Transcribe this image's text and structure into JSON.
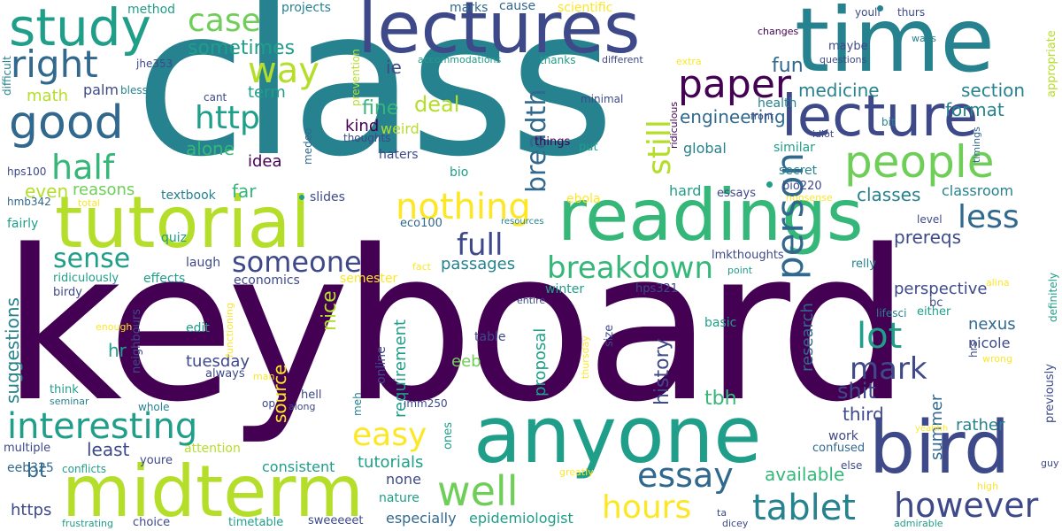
{
  "colors": {
    "dark_purple": "#440154",
    "indigo": "#3e4989",
    "blue": "#31688e",
    "teal": "#26828e",
    "green_teal": "#1f9e89",
    "green": "#35b779",
    "light_green": "#6ece58",
    "lime": "#b5de2b",
    "yellow": "#fde725"
  },
  "words": [
    {
      "text": "keyboard",
      "color": "dark_purple"
    },
    {
      "text": "class",
      "color": "teal"
    },
    {
      "text": "time",
      "color": "teal"
    },
    {
      "text": "lectures",
      "color": "indigo"
    },
    {
      "text": "lecture",
      "color": "indigo"
    },
    {
      "text": "readings",
      "color": "green"
    },
    {
      "text": "tutorial",
      "color": "lime"
    },
    {
      "text": "anyone",
      "color": "green_teal"
    },
    {
      "text": "midterm",
      "color": "lime"
    },
    {
      "text": "bird",
      "color": "indigo"
    },
    {
      "text": "study",
      "color": "green_teal"
    },
    {
      "text": "good",
      "color": "blue"
    },
    {
      "text": "people",
      "color": "light_green"
    },
    {
      "text": "paper",
      "color": "dark_purple"
    },
    {
      "text": "right",
      "color": "blue"
    },
    {
      "text": "case",
      "color": "light_green"
    },
    {
      "text": "way",
      "color": "lime"
    },
    {
      "text": "half",
      "color": "green"
    },
    {
      "text": "http",
      "color": "green_teal"
    },
    {
      "text": "sometimes",
      "color": "green_teal"
    },
    {
      "text": "nothing",
      "color": "yellow"
    },
    {
      "text": "breadth",
      "color": "blue"
    },
    {
      "text": "still",
      "color": "lime"
    },
    {
      "text": "less",
      "color": "blue"
    },
    {
      "text": "full",
      "color": "indigo"
    },
    {
      "text": "sense",
      "color": "green_teal"
    },
    {
      "text": "someone",
      "color": "indigo"
    },
    {
      "text": "breakdown",
      "color": "green"
    },
    {
      "text": "person",
      "color": "blue"
    },
    {
      "text": "lot",
      "color": "green_teal"
    },
    {
      "text": "mark",
      "color": "indigo"
    },
    {
      "text": "interesting",
      "color": "green_teal"
    },
    {
      "text": "easy",
      "color": "yellow"
    },
    {
      "text": "well",
      "color": "light_green"
    },
    {
      "text": "essay",
      "color": "blue"
    },
    {
      "text": "tablet",
      "color": "teal"
    },
    {
      "text": "however",
      "color": "indigo"
    },
    {
      "text": "hours",
      "color": "yellow"
    },
    {
      "text": "engineering",
      "color": "blue"
    },
    {
      "text": "format",
      "color": "teal"
    },
    {
      "text": "fun",
      "color": "blue"
    },
    {
      "text": "medicine",
      "color": "teal"
    },
    {
      "text": "section",
      "color": "teal"
    },
    {
      "text": "deal",
      "color": "lime"
    },
    {
      "text": "fine",
      "color": "green"
    },
    {
      "text": "ie",
      "color": "indigo"
    },
    {
      "text": "alone",
      "color": "green"
    },
    {
      "text": "kind",
      "color": "dark_purple"
    },
    {
      "text": "weird",
      "color": "lime"
    },
    {
      "text": "idea",
      "color": "dark_purple"
    },
    {
      "text": "term",
      "color": "green_teal"
    },
    {
      "text": "math",
      "color": "lime"
    },
    {
      "text": "palm",
      "color": "indigo"
    },
    {
      "text": "even",
      "color": "lime"
    },
    {
      "text": "reasons",
      "color": "light_green"
    },
    {
      "text": "far",
      "color": "green"
    },
    {
      "text": "classes",
      "color": "teal"
    },
    {
      "text": "classroom",
      "color": "teal"
    },
    {
      "text": "prereqs",
      "color": "indigo"
    },
    {
      "text": "passages",
      "color": "teal"
    },
    {
      "text": "perspective",
      "color": "indigo"
    },
    {
      "text": "research",
      "color": "blue"
    },
    {
      "text": "shit",
      "color": "indigo"
    },
    {
      "text": "third",
      "color": "indigo"
    },
    {
      "text": "tbh",
      "color": "green"
    },
    {
      "text": "history",
      "color": "indigo"
    },
    {
      "text": "tuesday",
      "color": "indigo"
    },
    {
      "text": "nice",
      "color": "lime"
    },
    {
      "text": "source",
      "color": "yellow"
    },
    {
      "text": "suggestions",
      "color": "teal"
    },
    {
      "text": "least",
      "color": "indigo"
    },
    {
      "text": "hr",
      "color": "green_teal"
    },
    {
      "text": "bt",
      "color": "blue"
    },
    {
      "text": "eeb",
      "color": "light_green"
    },
    {
      "text": "requirement",
      "color": "green_teal"
    },
    {
      "text": "proposal",
      "color": "green_teal"
    },
    {
      "text": "rather",
      "color": "teal"
    },
    {
      "text": "summer",
      "color": "blue"
    },
    {
      "text": "nicole",
      "color": "indigo"
    },
    {
      "text": "nexus",
      "color": "blue"
    },
    {
      "text": "tutorials",
      "color": "green_teal"
    },
    {
      "text": "consistent",
      "color": "green_teal"
    },
    {
      "text": "none",
      "color": "indigo"
    },
    {
      "text": "available",
      "color": "green"
    },
    {
      "text": "https",
      "color": "indigo"
    },
    {
      "text": "especially",
      "color": "blue"
    },
    {
      "text": "epidemiologist",
      "color": "green_teal"
    },
    {
      "text": "projects",
      "color": "teal"
    },
    {
      "text": "marks",
      "color": "blue"
    },
    {
      "text": "cause",
      "color": "blue"
    },
    {
      "text": "scientific",
      "color": "yellow"
    },
    {
      "text": "method",
      "color": "green_teal"
    },
    {
      "text": "difficult",
      "color": "teal"
    },
    {
      "text": "jhe353",
      "color": "indigo"
    },
    {
      "text": "accommodations",
      "color": "green_teal"
    },
    {
      "text": "thanks",
      "color": "green_teal"
    },
    {
      "text": "different",
      "color": "indigo"
    },
    {
      "text": "extra",
      "color": "yellow"
    },
    {
      "text": "changes",
      "color": "dark_purple"
    },
    {
      "text": "youll",
      "color": "indigo"
    },
    {
      "text": "thurs",
      "color": "indigo"
    },
    {
      "text": "ways",
      "color": "teal"
    },
    {
      "text": "questions",
      "color": "indigo"
    },
    {
      "text": "maybe",
      "color": "indigo"
    },
    {
      "text": "appropriate",
      "color": "lime"
    },
    {
      "text": "bless",
      "color": "teal"
    },
    {
      "text": "cant",
      "color": "indigo"
    },
    {
      "text": "prevention",
      "color": "lime"
    },
    {
      "text": "minimal",
      "color": "indigo"
    },
    {
      "text": "ridiculous",
      "color": "dark_purple"
    },
    {
      "text": "health",
      "color": "teal"
    },
    {
      "text": "front",
      "color": "indigo"
    },
    {
      "text": "bit",
      "color": "teal"
    },
    {
      "text": "idiot",
      "color": "indigo"
    },
    {
      "text": "timings",
      "color": "blue"
    },
    {
      "text": "thoughts",
      "color": "indigo"
    },
    {
      "text": "things",
      "color": "dark_purple"
    },
    {
      "text": "put",
      "color": "green_teal"
    },
    {
      "text": "global",
      "color": "teal"
    },
    {
      "text": "similar",
      "color": "green_teal"
    },
    {
      "text": "secret",
      "color": "teal"
    },
    {
      "text": "medeo",
      "color": "blue"
    },
    {
      "text": "haters",
      "color": "indigo"
    },
    {
      "text": "bio",
      "color": "green_teal"
    },
    {
      "text": "hps100",
      "color": "indigo"
    },
    {
      "text": "textbook",
      "color": "teal"
    },
    {
      "text": "slides",
      "color": "indigo"
    },
    {
      "text": "ebola",
      "color": "yellow"
    },
    {
      "text": "hard",
      "color": "green_teal"
    },
    {
      "text": "essays",
      "color": "indigo"
    },
    {
      "text": "bio220",
      "color": "indigo"
    },
    {
      "text": "nonsense",
      "color": "yellow"
    },
    {
      "text": "hmb342",
      "color": "blue"
    },
    {
      "text": "total",
      "color": "yellow"
    },
    {
      "text": "eco100",
      "color": "blue"
    },
    {
      "text": "resources",
      "color": "teal"
    },
    {
      "text": "level",
      "color": "indigo"
    },
    {
      "text": "fairly",
      "color": "green_teal"
    },
    {
      "text": "quiz",
      "color": "green_teal"
    },
    {
      "text": "lmkthoughts",
      "color": "indigo"
    },
    {
      "text": "point",
      "color": "green_teal"
    },
    {
      "text": "relly",
      "color": "teal"
    },
    {
      "text": "laugh",
      "color": "indigo"
    },
    {
      "text": "fact",
      "color": "yellow"
    },
    {
      "text": "ridiculously",
      "color": "green_teal"
    },
    {
      "text": "effects",
      "color": "green_teal"
    },
    {
      "text": "economics",
      "color": "indigo"
    },
    {
      "text": "semester",
      "color": "yellow"
    },
    {
      "text": "either",
      "color": "green_teal"
    },
    {
      "text": "alina",
      "color": "yellow"
    },
    {
      "text": "birdy",
      "color": "indigo"
    },
    {
      "text": "winter",
      "color": "green_teal"
    },
    {
      "text": "hps321",
      "color": "indigo"
    },
    {
      "text": "definitely",
      "color": "green_teal"
    },
    {
      "text": "entire",
      "color": "indigo"
    },
    {
      "text": "bc",
      "color": "indigo"
    },
    {
      "text": "lifesci",
      "color": "teal"
    },
    {
      "text": "neighbours",
      "color": "indigo"
    },
    {
      "text": "enough",
      "color": "yellow"
    },
    {
      "text": "edit",
      "color": "green_teal"
    },
    {
      "text": "functioning",
      "color": "yellow"
    },
    {
      "text": "basic",
      "color": "green_teal"
    },
    {
      "text": "table",
      "color": "indigo"
    },
    {
      "text": "size",
      "color": "indigo"
    },
    {
      "text": "thursday",
      "color": "yellow"
    },
    {
      "text": "hrs",
      "color": "indigo"
    },
    {
      "text": "wrong",
      "color": "yellow"
    },
    {
      "text": "always",
      "color": "indigo"
    },
    {
      "text": "man",
      "color": "yellow"
    },
    {
      "text": "online",
      "color": "indigo"
    },
    {
      "text": "think",
      "color": "green_teal"
    },
    {
      "text": "seminar",
      "color": "teal"
    },
    {
      "text": "hell",
      "color": "indigo"
    },
    {
      "text": "along",
      "color": "indigo"
    },
    {
      "text": "op",
      "color": "indigo"
    },
    {
      "text": "whole",
      "color": "teal"
    },
    {
      "text": "meh",
      "color": "teal"
    },
    {
      "text": "imm250",
      "color": "indigo"
    },
    {
      "text": "ones",
      "color": "green_teal"
    },
    {
      "text": "previously",
      "color": "indigo"
    },
    {
      "text": "multiple",
      "color": "indigo"
    },
    {
      "text": "attention",
      "color": "lime"
    },
    {
      "text": "work",
      "color": "indigo"
    },
    {
      "text": "confused",
      "color": "blue"
    },
    {
      "text": "yeahhh",
      "color": "yellow"
    },
    {
      "text": "eeb325",
      "color": "blue"
    },
    {
      "text": "conflicts",
      "color": "green_teal"
    },
    {
      "text": "youre",
      "color": "indigo"
    },
    {
      "text": "nature",
      "color": "green_teal"
    },
    {
      "text": "greatly",
      "color": "yellow"
    },
    {
      "text": "else",
      "color": "indigo"
    },
    {
      "text": "high",
      "color": "yellow"
    },
    {
      "text": "guy",
      "color": "indigo"
    },
    {
      "text": "frustrating",
      "color": "green_teal"
    },
    {
      "text": "choice",
      "color": "indigo"
    },
    {
      "text": "timetable",
      "color": "green_teal"
    },
    {
      "text": "sweeeeet",
      "color": "indigo"
    },
    {
      "text": "ta",
      "color": "indigo"
    },
    {
      "text": "dicey",
      "color": "indigo"
    },
    {
      "text": "admirable",
      "color": "green_teal"
    }
  ]
}
